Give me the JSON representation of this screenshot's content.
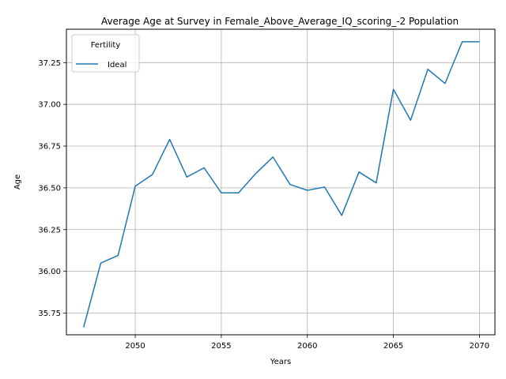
{
  "chart_data": {
    "type": "line",
    "title": "Average Age at Survey in Female_Above_Average_IQ_scoring_-2 Population",
    "xlabel": "Years",
    "ylabel": "Age",
    "xlim": [
      2046.0,
      2070.9
    ],
    "ylim": [
      35.62,
      37.45
    ],
    "x_ticks": [
      2050,
      2055,
      2060,
      2065,
      2070
    ],
    "y_ticks": [
      35.75,
      36.0,
      36.25,
      36.5,
      36.75,
      37.0,
      37.25
    ],
    "x_tick_labels": [
      "2050",
      "2055",
      "2060",
      "2065",
      "2070"
    ],
    "y_tick_labels": [
      "35.75",
      "36.00",
      "36.25",
      "36.50",
      "36.75",
      "37.00",
      "37.25"
    ],
    "grid": true,
    "legend": {
      "title": "Fertility",
      "placement": "top-left"
    },
    "series": [
      {
        "name": "Ideal",
        "color": "#1f77b4",
        "x": [
          2047,
          2048,
          2049,
          2050,
          2051,
          2052,
          2053,
          2054,
          2055,
          2056,
          2057,
          2058,
          2059,
          2060,
          2061,
          2062,
          2063,
          2064,
          2065,
          2066,
          2067,
          2068,
          2069,
          2070
        ],
        "values": [
          35.665,
          36.05,
          36.095,
          36.51,
          36.58,
          36.79,
          36.565,
          36.62,
          36.47,
          36.47,
          36.585,
          36.685,
          36.52,
          36.485,
          36.505,
          36.335,
          36.595,
          36.53,
          37.09,
          36.905,
          37.21,
          37.125,
          37.375,
          37.375
        ]
      }
    ]
  }
}
